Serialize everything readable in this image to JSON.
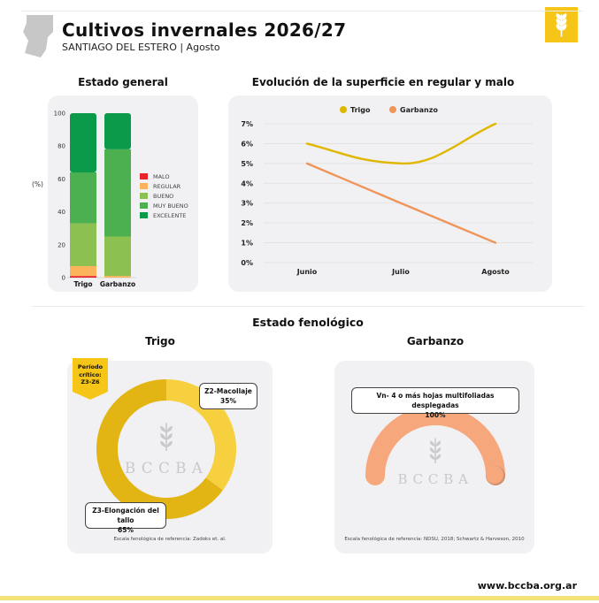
{
  "header": {
    "title": "Cultivos invernales 2026/27",
    "subtitle": "SANTIAGO DEL ESTERO | Agosto",
    "brand_color": "#f5c518",
    "logo_icon": "wheat-icon",
    "map_icon": "province-map-icon"
  },
  "estado_general": {
    "title": "Estado general",
    "ylabel": "(%)",
    "yticks": [
      "100",
      "80",
      "60",
      "40",
      "20",
      "0"
    ],
    "legend": [
      {
        "label": "MALO",
        "color": "#e8242a"
      },
      {
        "label": "REGULAR",
        "color": "#fbb45c"
      },
      {
        "label": "BUENO",
        "color": "#8cc152"
      },
      {
        "label": "MUY BUENO",
        "color": "#4caf50"
      },
      {
        "label": "EXCELENTE",
        "color": "#0a9a4a"
      }
    ]
  },
  "evolucion": {
    "title": "Evolución de la superficie en regular y malo",
    "series_colors": {
      "Trigo": "#e0b700",
      "Garbanzo": "#f0955a"
    },
    "yticks": [
      "7%",
      "6%",
      "5%",
      "4%",
      "3%",
      "2%",
      "1%",
      "0%"
    ]
  },
  "fenologico": {
    "title": "Estado fenológico",
    "trigo": {
      "title": "Trigo",
      "badge": "Período crítico: Z3-Z6",
      "callout_1_label": "Z2-Macollaje",
      "callout_1_value": "35%",
      "callout_2_label": "Z3-Elongación del tallo",
      "callout_2_value": "65%",
      "footnote": "Escala fenológica de referencia: Zadoks et. al."
    },
    "garbanzo": {
      "title": "Garbanzo",
      "callout_label": "Vn- 4 o más hojas multifoliadas desplegadas",
      "callout_value": "100%",
      "footnote": "Escala fenológica de referencia: NDSU, 2018; Schwartz & Harveson, 2010"
    },
    "watermark": "BCCBA"
  },
  "footer": {
    "url": "www.bccba.org.ar"
  },
  "chart_data": [
    {
      "type": "bar",
      "title": "Estado general",
      "ylabel": "(%)",
      "ylim": [
        0,
        100
      ],
      "categories": [
        "Trigo",
        "Garbanzo"
      ],
      "stacked": true,
      "legend": "right",
      "series": [
        {
          "name": "MALO",
          "values": [
            1,
            0
          ]
        },
        {
          "name": "REGULAR",
          "values": [
            6,
            1
          ]
        },
        {
          "name": "BUENO",
          "values": [
            26,
            24
          ]
        },
        {
          "name": "MUY BUENO",
          "values": [
            31,
            53
          ]
        },
        {
          "name": "EXCELENTE",
          "values": [
            36,
            22
          ]
        }
      ]
    },
    {
      "type": "line",
      "title": "Evolución de la superficie en regular y malo",
      "categories": [
        "Junio",
        "Julio",
        "Agosto"
      ],
      "ylim": [
        0,
        7
      ],
      "legend": "top",
      "grid": true,
      "series": [
        {
          "name": "Trigo",
          "values": [
            6,
            5,
            7
          ]
        },
        {
          "name": "Garbanzo",
          "values": [
            5,
            3,
            1
          ]
        }
      ]
    },
    {
      "type": "pie",
      "title": "Trigo",
      "donut": true,
      "categories": [
        "Z2-Macollaje",
        "Z3-Elongación del tallo"
      ],
      "values": [
        35,
        65
      ]
    },
    {
      "type": "pie",
      "title": "Garbanzo",
      "semicircle": true,
      "categories": [
        "Vn- 4 o más hojas multifoliadas desplegadas"
      ],
      "values": [
        100
      ]
    }
  ]
}
